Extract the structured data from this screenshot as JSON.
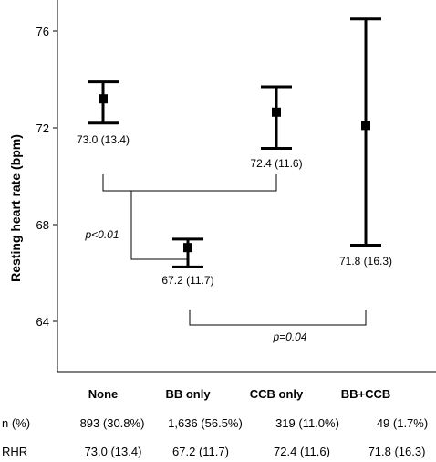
{
  "chart_data": {
    "type": "scatter",
    "ylabel": "Resting heart rate (bpm)",
    "ylim": [
      62.2,
      77.5
    ],
    "yticks": [
      64,
      68,
      72,
      76
    ],
    "grid": false,
    "categories": [
      "None",
      "BB only",
      "CCB only",
      "BB+CCB"
    ],
    "points": [
      {
        "category": "None",
        "mean": 73.2,
        "low": 72.2,
        "high": 73.9,
        "label": "73.0 (13.4)"
      },
      {
        "category": "BB only",
        "mean": 67.05,
        "low": 66.25,
        "high": 67.4,
        "label": "67.2 (11.7)"
      },
      {
        "category": "CCB only",
        "mean": 72.65,
        "low": 71.15,
        "high": 73.7,
        "label": "72.4 (11.6)"
      },
      {
        "category": "BB+CCB",
        "mean": 72.1,
        "low": 67.15,
        "high": 76.5,
        "label": "71.8 (16.3)"
      }
    ],
    "annotations": [
      {
        "text": "p<0.01",
        "y": 67.4
      },
      {
        "text": "p=0.04",
        "y": 63.5
      }
    ]
  },
  "table": {
    "rows": [
      {
        "label": "n (%)",
        "values": [
          "893 (30.8%)",
          "1,636 (56.5%)",
          "319 (11.0%)",
          "49 (1.7%)"
        ]
      },
      {
        "label": "RHR",
        "values": [
          "73.0 (13.4)",
          "67.2 (11.7)",
          "72.4 (11.6)",
          "71.8 (16.3)"
        ]
      }
    ]
  }
}
